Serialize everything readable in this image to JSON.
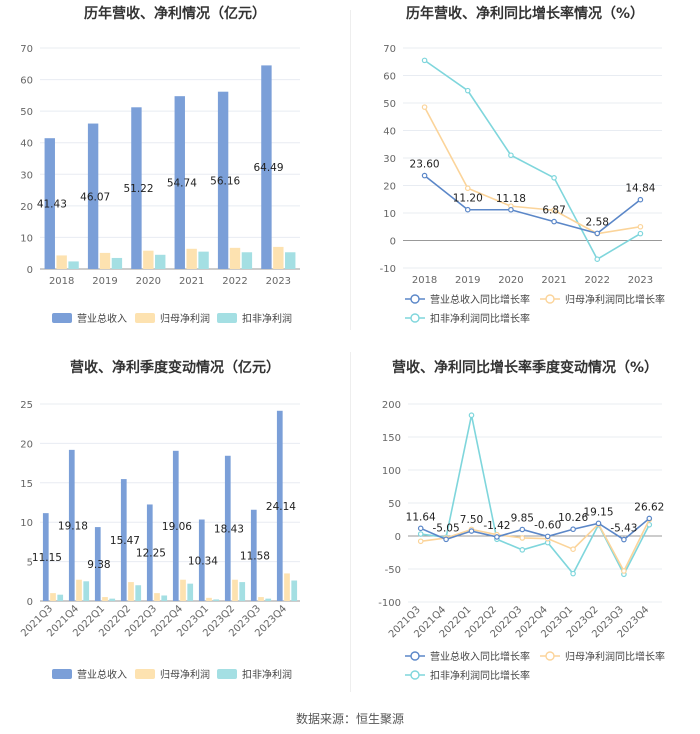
{
  "charts": [
    {
      "chart_data": {
        "type": "bar",
        "title": "历年营收、净利情况（亿元）",
        "categories": [
          "2018",
          "2019",
          "2020",
          "2021",
          "2022",
          "2023"
        ],
        "ylim": [
          0,
          70
        ],
        "yticks": [
          0,
          10,
          20,
          30,
          40,
          50,
          60,
          70
        ],
        "label_series": 0,
        "series": [
          {
            "name": "营业总收入",
            "color": "#7b9fd8",
            "values": [
              41.43,
              46.07,
              51.22,
              54.74,
              56.16,
              64.49
            ],
            "labels": [
              "41.43",
              "46.07",
              "51.22",
              "54.74",
              "56.16",
              "64.49"
            ]
          },
          {
            "name": "归母净利润",
            "color": "#fde2b0",
            "values": [
              4.3,
              5.1,
              5.8,
              6.4,
              6.7,
              7.0
            ]
          },
          {
            "name": "扣非净利润",
            "color": "#a4dfe3",
            "values": [
              2.4,
              3.5,
              4.5,
              5.5,
              5.3,
              5.3
            ]
          }
        ]
      }
    },
    {
      "chart_data": {
        "type": "line",
        "title": "历年营收、净利同比增长率情况（%）",
        "categories": [
          "2018",
          "2019",
          "2020",
          "2021",
          "2022",
          "2023"
        ],
        "ylim": [
          -10,
          70
        ],
        "yticks": [
          -10,
          0,
          10,
          20,
          30,
          40,
          50,
          60,
          70
        ],
        "label_series": 0,
        "series": [
          {
            "name": "营业总收入同比增长率",
            "color": "#5b87c8",
            "values": [
              23.6,
              11.2,
              11.18,
              6.87,
              2.58,
              14.84
            ],
            "labels": [
              "23.60",
              "11.20",
              "11.18",
              "6.87",
              "2.58",
              "14.84"
            ]
          },
          {
            "name": "归母净利润同比增长率",
            "color": "#fbd49a",
            "values": [
              48.5,
              19.0,
              12.5,
              11.0,
              2.5,
              5.0
            ]
          },
          {
            "name": "扣非净利润同比增长率",
            "color": "#7fd6dc",
            "values": [
              65.5,
              54.5,
              31.0,
              22.8,
              -6.8,
              2.5
            ]
          }
        ]
      }
    },
    {
      "chart_data": {
        "type": "bar",
        "title": "营收、净利季度变动情况（亿元）",
        "categories": [
          "2021Q3",
          "2021Q4",
          "2022Q1",
          "2022Q2",
          "2022Q3",
          "2022Q4",
          "2023Q1",
          "2023Q2",
          "2023Q3",
          "2023Q4"
        ],
        "ylim": [
          0,
          25
        ],
        "yticks": [
          0,
          5,
          10,
          15,
          20,
          25
        ],
        "label_series": 0,
        "series": [
          {
            "name": "营业总收入",
            "color": "#7b9fd8",
            "values": [
              11.15,
              19.18,
              9.38,
              15.47,
              12.25,
              19.06,
              10.34,
              18.43,
              11.58,
              24.14
            ],
            "labels": [
              "11.15",
              "19.18",
              "9.38",
              "15.47",
              "12.25",
              "19.06",
              "10.34",
              "18.43",
              "11.58",
              "24.14"
            ]
          },
          {
            "name": "归母净利润",
            "color": "#fde2b0",
            "values": [
              1.0,
              2.7,
              0.5,
              2.4,
              1.0,
              2.7,
              0.4,
              2.7,
              0.5,
              3.5
            ]
          },
          {
            "name": "扣非净利润",
            "color": "#a4dfe3",
            "values": [
              0.8,
              2.5,
              0.3,
              2.0,
              0.7,
              2.2,
              0.2,
              2.4,
              0.3,
              2.6
            ]
          }
        ]
      }
    },
    {
      "chart_data": {
        "type": "line",
        "title": "营收、净利同比增长率季度变动情况（%）",
        "categories": [
          "2021Q3",
          "2021Q4",
          "2022Q1",
          "2022Q2",
          "2022Q3",
          "2022Q4",
          "2023Q1",
          "2023Q2",
          "2023Q3",
          "2023Q4"
        ],
        "ylim": [
          -100,
          200
        ],
        "yticks": [
          -100,
          -50,
          0,
          50,
          100,
          150,
          200
        ],
        "label_series": 0,
        "series": [
          {
            "name": "营业总收入同比增长率",
            "color": "#5b87c8",
            "values": [
              11.64,
              -5.05,
              7.5,
              -1.42,
              9.85,
              -0.6,
              10.26,
              19.15,
              -5.43,
              26.62
            ],
            "labels": [
              "11.64",
              "-5.05",
              "7.50",
              "-1.42",
              "9.85",
              "-0.60",
              "10.26",
              "19.15",
              "-5.43",
              "26.62"
            ]
          },
          {
            "name": "归母净利润同比增长率",
            "color": "#fbd49a",
            "values": [
              -8.0,
              -3.0,
              10.0,
              2.0,
              -3.0,
              -4.0,
              -20.0,
              18.0,
              -53.0,
              25.0
            ]
          },
          {
            "name": "扣非净利润同比增长率",
            "color": "#7fd6dc",
            "values": [
              3.0,
              -2.0,
              183.0,
              -5.0,
              -21.0,
              -10.0,
              -57.0,
              17.0,
              -58.0,
              17.0
            ]
          }
        ]
      }
    }
  ],
  "source": "数据来源：恒生聚源"
}
